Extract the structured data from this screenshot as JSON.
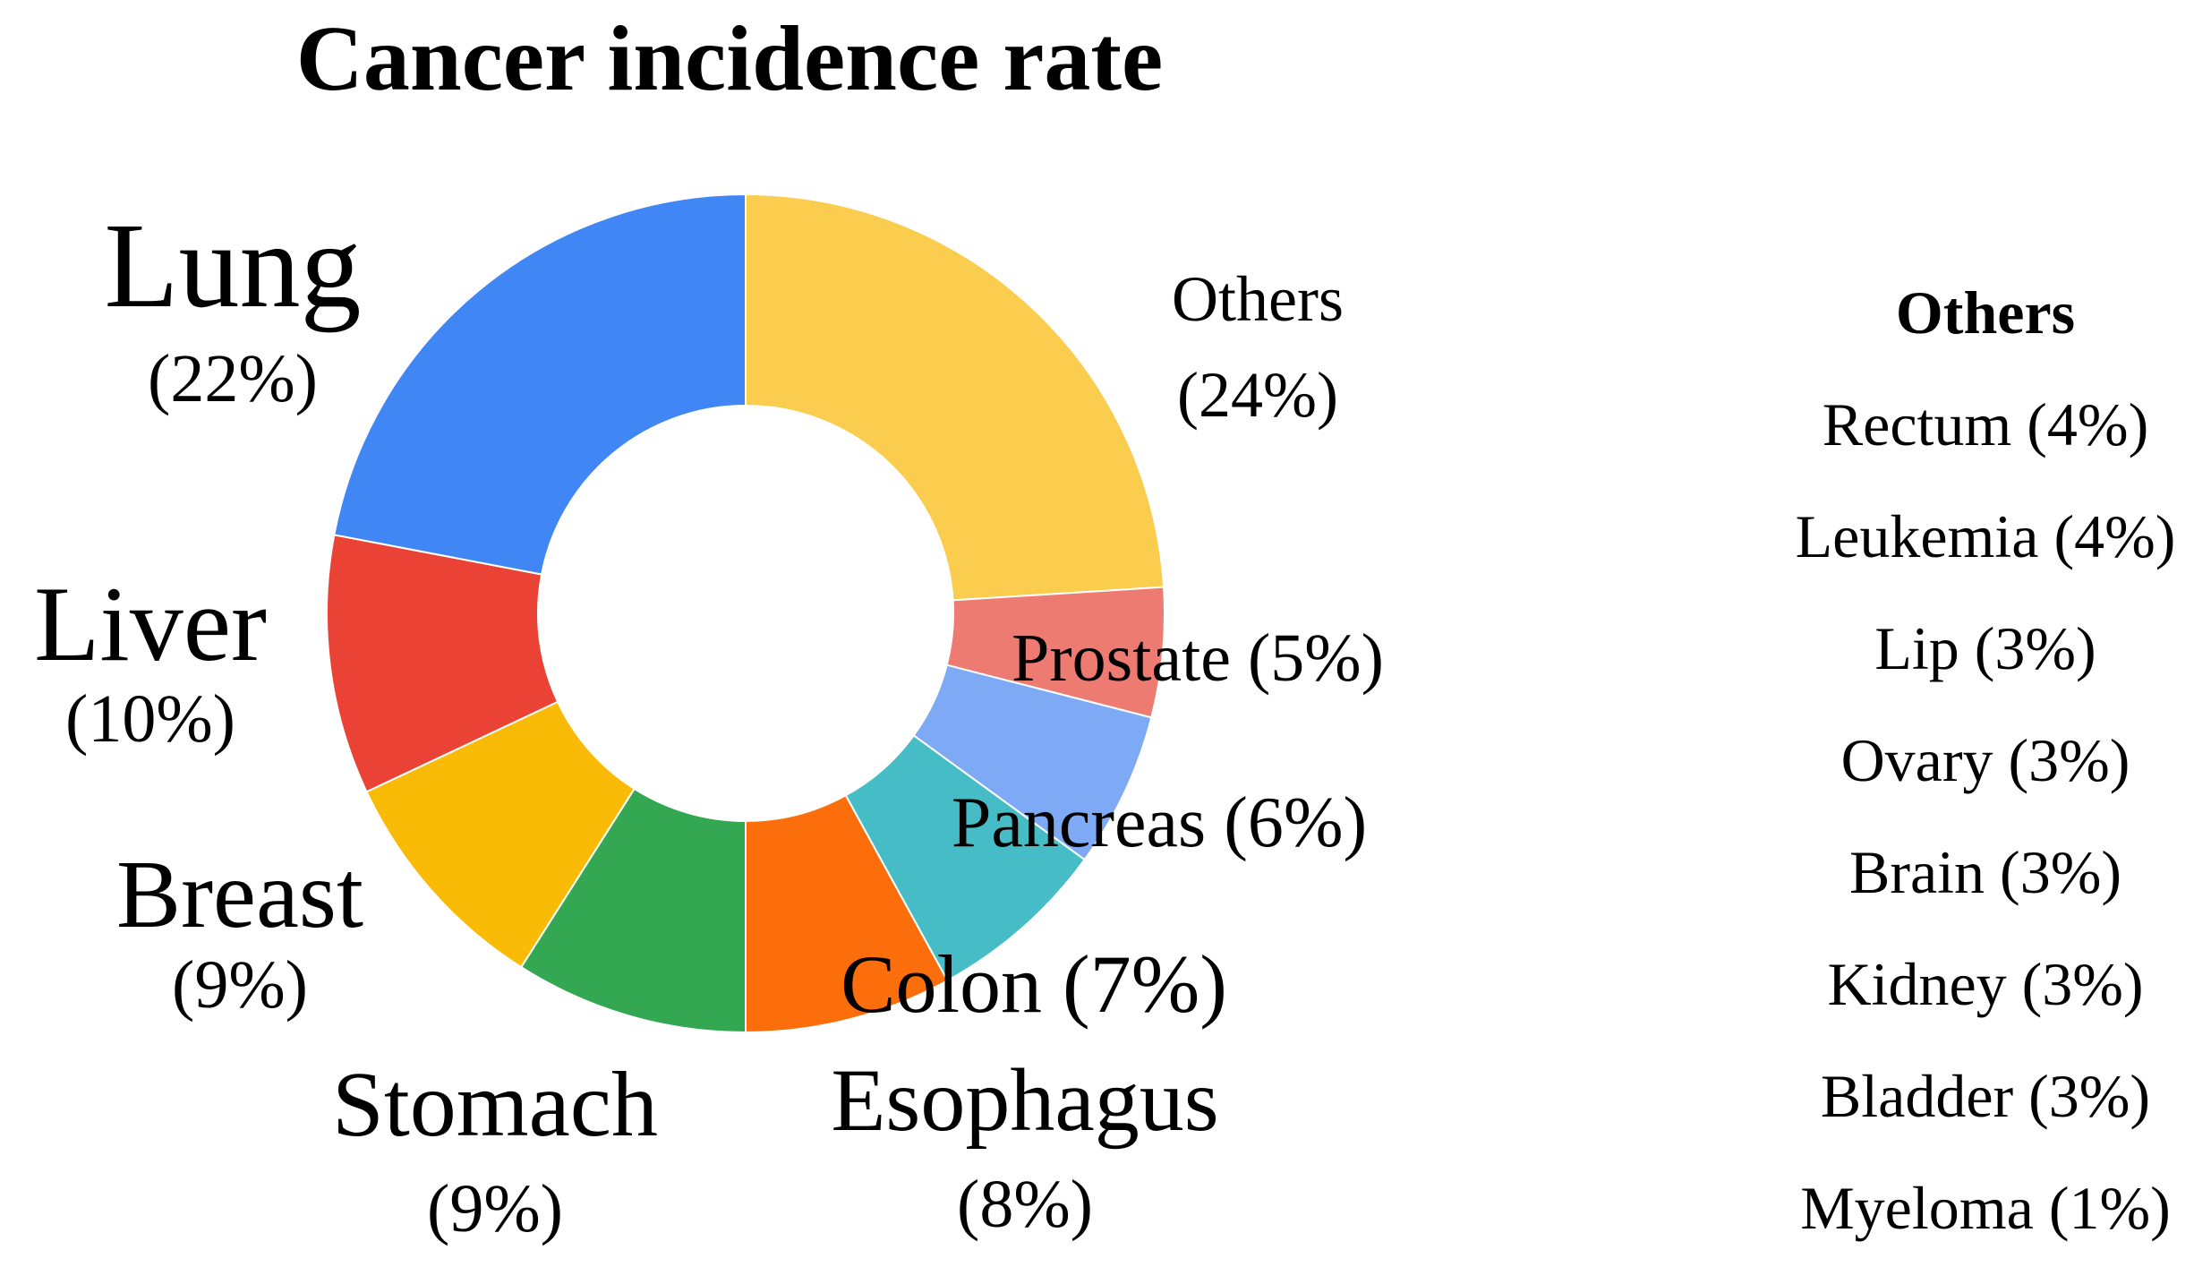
{
  "chart_data": {
    "type": "pie",
    "title": "Cancer incidence rate",
    "slices": [
      {
        "label": "Others",
        "percent_label": "(24%)",
        "value": 24,
        "color": "#FACD4F"
      },
      {
        "label": "Prostate",
        "percent_label": "(5%)",
        "value": 5,
        "color": "#EE7B72"
      },
      {
        "label": "Pancreas",
        "percent_label": "(6%)",
        "value": 6,
        "color": "#7EA9F5"
      },
      {
        "label": "Colon",
        "percent_label": "(7%)",
        "value": 7,
        "color": "#46BCC6"
      },
      {
        "label": "Esophagus",
        "percent_label": "(8%)",
        "value": 8,
        "color": "#FC6D0C"
      },
      {
        "label": "Stomach",
        "percent_label": "(9%)",
        "value": 9,
        "color": "#34A753"
      },
      {
        "label": "Breast",
        "percent_label": "(9%)",
        "value": 9,
        "color": "#FABB06"
      },
      {
        "label": "Liver",
        "percent_label": "(10%)",
        "value": 10,
        "color": "#EA4335"
      },
      {
        "label": "Lung",
        "percent_label": "(22%)",
        "value": 22,
        "color": "#4186F5"
      }
    ],
    "others_breakdown": {
      "heading": "Others",
      "items": [
        {
          "text": "Rectum (4%)"
        },
        {
          "text": "Leukemia (4%)"
        },
        {
          "text": "Lip (3%)"
        },
        {
          "text": "Ovary (3%)"
        },
        {
          "text": "Brain (3%)"
        },
        {
          "text": "Kidney (3%)"
        },
        {
          "text": "Bladder (3%)"
        },
        {
          "text": "Myeloma (1%)"
        }
      ]
    }
  }
}
